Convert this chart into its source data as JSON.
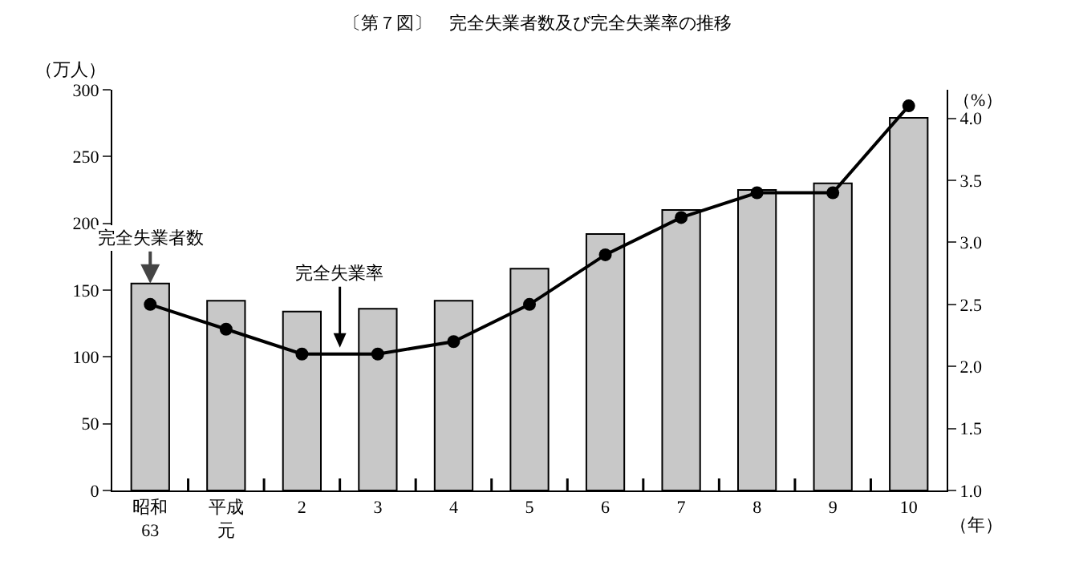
{
  "chart_data": {
    "type": "bar",
    "title": "〔第７図〕　完全失業者数及び完全失業率の推移",
    "ylabel": "（万人）",
    "y2label": "（%）",
    "xlabel": "（年）",
    "categories": [
      "昭和63",
      "平成元",
      "2",
      "3",
      "4",
      "5",
      "6",
      "7",
      "8",
      "9",
      "10"
    ],
    "series": [
      {
        "color": "#c8c8c8",
        "values": [
          155,
          142,
          134,
          136,
          142,
          166,
          192,
          210,
          225,
          230,
          279
        ]
      },
      {
        "type": "line",
        "axis": "y2",
        "color": "#000000",
        "marker": "circle",
        "line_style": "solid",
        "values": [
          2.5,
          2.3,
          2.1,
          2.1,
          2.2,
          2.5,
          2.9,
          3.2,
          3.4,
          3.4,
          4.1
        ]
      }
    ],
    "ylim": [
      0,
      300
    ],
    "yticks": [
      0,
      50,
      100,
      150,
      200,
      250,
      300
    ],
    "y2lim": [
      1.0,
      4.23
    ],
    "y2ticks": [
      {
        "value": 1,
        "label": "1.0"
      },
      {
        "value": 1.5,
        "label": "1.5"
      },
      {
        "value": 2,
        "label": "2.0"
      },
      {
        "value": 2.5,
        "label": "2.5"
      },
      {
        "value": 3,
        "label": "3.0"
      },
      {
        "value": 3.5,
        "label": "3.5"
      },
      {
        "value": 4,
        "label": "4.0"
      }
    ],
    "annotations": [
      {
        "text": "完全失業者数",
        "x": "昭和63",
        "y": 155
      },
      "完全失業率"
    ],
    "grid": false,
    "legend": false
  }
}
